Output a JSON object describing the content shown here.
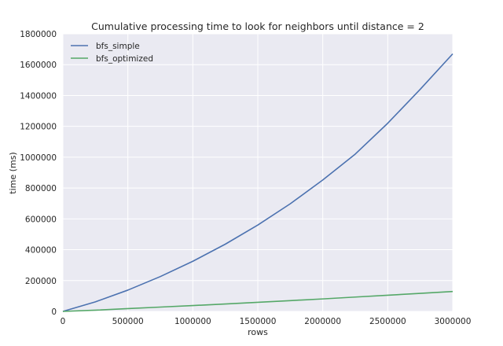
{
  "chart_data": {
    "type": "line",
    "title": "Cumulative processing time to look for neighbors until distance = 2",
    "xlabel": "rows",
    "ylabel": "time (ms)",
    "xlim": [
      0,
      3000000
    ],
    "ylim": [
      0,
      1800000
    ],
    "xticks": [
      0,
      500000,
      1000000,
      1500000,
      2000000,
      2500000,
      3000000
    ],
    "yticks": [
      0,
      200000,
      400000,
      600000,
      800000,
      1000000,
      1200000,
      1400000,
      1600000,
      1800000
    ],
    "grid": true,
    "legend_position": "top-left",
    "x": [
      0,
      250000,
      500000,
      750000,
      1000000,
      1250000,
      1500000,
      1750000,
      2000000,
      2250000,
      2500000,
      2750000,
      3000000
    ],
    "series": [
      {
        "name": "bfs_simple",
        "color": "#4c72b0",
        "values": [
          0,
          62000,
          138000,
          226000,
          325000,
          436000,
          560000,
          698000,
          852000,
          1020000,
          1220000,
          1440000,
          1670000
        ]
      },
      {
        "name": "bfs_optimized",
        "color": "#55a868",
        "values": [
          0,
          8000,
          18000,
          28000,
          38000,
          48000,
          59000,
          70000,
          81000,
          93000,
          105000,
          117000,
          129000
        ]
      }
    ],
    "background_color": "#eaeaf2",
    "grid_color": "#ffffff"
  }
}
